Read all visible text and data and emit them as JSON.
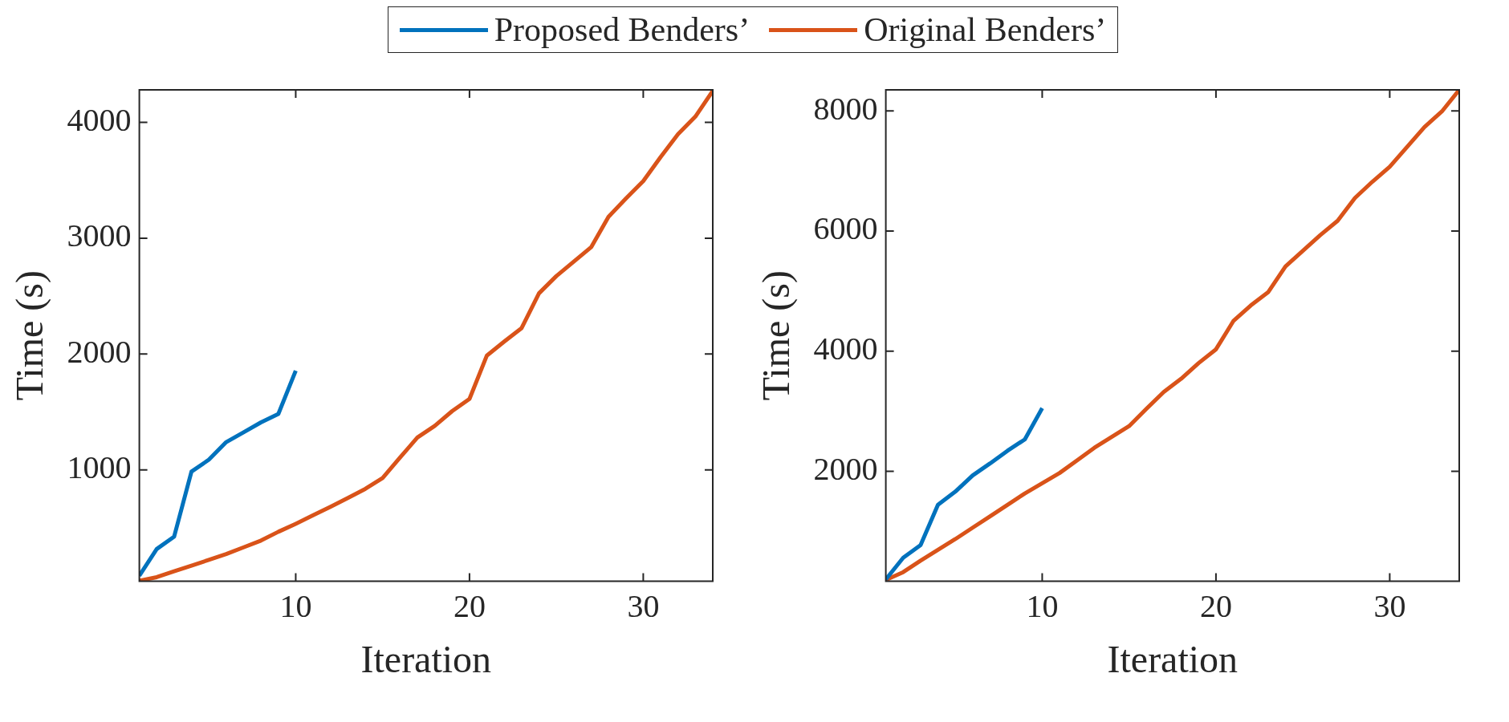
{
  "chart_data": [
    {
      "type": "line",
      "xlabel": "Iteration",
      "ylabel": "Time (s)",
      "x": [
        1,
        2,
        3,
        4,
        5,
        6,
        7,
        8,
        9,
        10,
        11,
        12,
        13,
        14,
        15,
        16,
        17,
        18,
        19,
        20,
        21,
        22,
        23,
        24,
        25,
        26,
        27,
        28,
        29,
        30,
        31,
        32,
        33,
        34
      ],
      "xlim": [
        1,
        34
      ],
      "xticks": [
        10,
        20,
        30
      ],
      "ylim": [
        40,
        4280
      ],
      "yticks": [
        1000,
        2000,
        3000,
        4000
      ],
      "grid": false,
      "legend": "top",
      "marker": "none",
      "line_style": "solid",
      "series": [
        {
          "name": "Proposed Benders’",
          "color": "#0072bd",
          "x": [
            1,
            2,
            3,
            4,
            5,
            6,
            7,
            8,
            9,
            10
          ],
          "values": [
            86,
            317,
            423,
            985,
            1088,
            1240,
            1325,
            1410,
            1483,
            1856
          ]
        },
        {
          "name": "Original Benders’",
          "color": "#d95319",
          "values": [
            43,
            74,
            125,
            174,
            223,
            274,
            332,
            390,
            466,
            535,
            608,
            681,
            757,
            836,
            930,
            1106,
            1279,
            1380,
            1507,
            1613,
            1987,
            2108,
            2224,
            2524,
            2673,
            2798,
            2922,
            3184,
            3342,
            3493,
            3700,
            3897,
            4049,
            4271
          ]
        }
      ]
    },
    {
      "type": "line",
      "xlabel": "Iteration",
      "ylabel": "Time (s)",
      "x": [
        1,
        2,
        3,
        4,
        5,
        6,
        7,
        8,
        9,
        10,
        11,
        12,
        13,
        14,
        15,
        16,
        17,
        18,
        19,
        20,
        21,
        22,
        23,
        24,
        25,
        26,
        27,
        28,
        29,
        30,
        31,
        32,
        33,
        34
      ],
      "xlim": [
        1,
        34
      ],
      "xticks": [
        10,
        20,
        30
      ],
      "ylim": [
        170,
        8350
      ],
      "yticks": [
        2000,
        4000,
        6000,
        8000
      ],
      "grid": false,
      "marker": "none",
      "line_style": "solid",
      "series": [
        {
          "color": "#0072bd",
          "x": [
            1,
            2,
            3,
            4,
            5,
            6,
            7,
            8,
            9,
            10
          ],
          "values": [
            200,
            560,
            770,
            1440,
            1660,
            1930,
            2130,
            2340,
            2530,
            3050
          ]
        },
        {
          "color": "#d95319",
          "values": [
            190,
            320,
            510,
            690,
            870,
            1060,
            1250,
            1440,
            1630,
            1800,
            1970,
            2180,
            2390,
            2570,
            2750,
            3040,
            3320,
            3540,
            3800,
            4030,
            4500,
            4760,
            4980,
            5410,
            5670,
            5930,
            6170,
            6550,
            6820,
            7070,
            7400,
            7730,
            7990,
            8350
          ]
        }
      ]
    }
  ]
}
